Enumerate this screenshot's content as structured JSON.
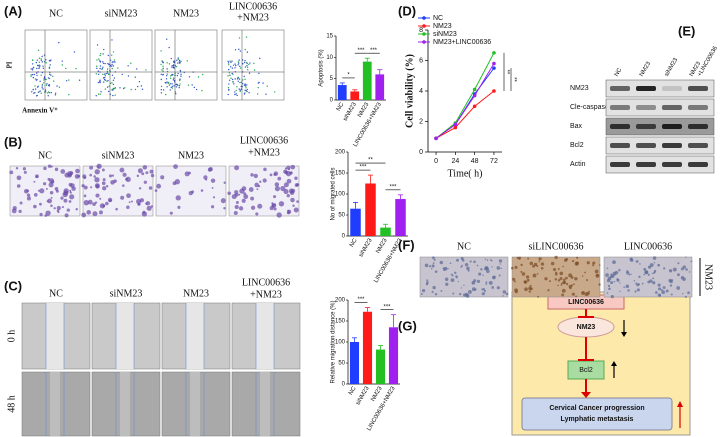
{
  "panels": {
    "a": {
      "label": "(A)",
      "groups": [
        [
          "NC"
        ],
        [
          "siNM23"
        ],
        [
          "NM23"
        ],
        [
          "LINC00636",
          "+NM23"
        ]
      ],
      "y_axis": "PI",
      "x_axis": "Annexin V⁺"
    },
    "b": {
      "label": "(B)",
      "groups": [
        [
          "NC"
        ],
        [
          "siNM23"
        ],
        [
          "NM23"
        ],
        [
          "LINC00636",
          "+NM23"
        ]
      ]
    },
    "c": {
      "label": "(C)",
      "groups": [
        [
          "NC"
        ],
        [
          "siNM23"
        ],
        [
          "NM23"
        ],
        [
          "LINC00636",
          "+NM23"
        ]
      ],
      "rows": [
        "0 h",
        "48 h"
      ]
    },
    "d": {
      "label": "(D)"
    },
    "e": {
      "label": "(E)",
      "columns": [
        [
          "NC"
        ],
        [
          "NM23"
        ],
        [
          "siNM23"
        ],
        [
          "NM23",
          "+LINC00636"
        ]
      ],
      "rows": [
        "NM23",
        "Cle-caspase 3",
        "Bax",
        "Bcl2",
        "Actin"
      ]
    },
    "f": {
      "label": "(F)",
      "columns": [
        "NC",
        "siLINC00636",
        "LINC00636"
      ],
      "row": "NM23"
    },
    "g": {
      "label": "(G)",
      "nodes": [
        [
          "LINC00636"
        ],
        [
          "NM23"
        ],
        [
          "Bcl2"
        ],
        [
          "Cervical Cancer progression",
          "Lymphatic metastasis"
        ]
      ]
    }
  },
  "chart_data": [
    {
      "type": "bar",
      "y_label": "Apoptosis (%)",
      "categories": [
        "NC",
        "siNM23",
        "NM23",
        "LINC00636+NM23"
      ],
      "values": [
        3.5,
        2,
        9,
        6
      ],
      "errors": [
        0.5,
        0.4,
        0.8,
        1.1
      ],
      "colors": [
        "#1f3cff",
        "#ff1a1a",
        "#22c022",
        "#a020f0"
      ],
      "ylim": [
        0,
        15
      ],
      "yticks": [
        0,
        5,
        10,
        15
      ],
      "annotations": [
        "*",
        "***",
        "***"
      ]
    },
    {
      "type": "bar",
      "y_label": "No of migrated cells",
      "categories": [
        "NC",
        "siNM23",
        "NM23",
        "LINC00636+NM23"
      ],
      "values": [
        65,
        125,
        20,
        88
      ],
      "errors": [
        15,
        20,
        8,
        10
      ],
      "colors": [
        "#1f3cff",
        "#ff1a1a",
        "#22c022",
        "#a020f0"
      ],
      "ylim": [
        0,
        200
      ],
      "yticks": [
        0,
        50,
        100,
        150,
        200
      ],
      "annotations": [
        "***",
        "**",
        "***"
      ]
    },
    {
      "type": "bar",
      "y_label": "Relative migration distance (%)",
      "categories": [
        "NC",
        "siNM23",
        "NM23",
        "LINC00636+NM23"
      ],
      "values": [
        100,
        172,
        82,
        135
      ],
      "errors": [
        10,
        10,
        10,
        30
      ],
      "colors": [
        "#1f3cff",
        "#ff1a1a",
        "#22c022",
        "#a020f0"
      ],
      "ylim": [
        0,
        200
      ],
      "yticks": [
        0,
        50,
        100,
        150,
        200
      ],
      "annotations": [
        "***",
        "***"
      ]
    },
    {
      "type": "line",
      "y_label": "Cell viability (%)",
      "x_label": "Time( h)",
      "x": [
        0,
        24,
        48,
        72
      ],
      "xlim": [
        -10,
        82
      ],
      "xticks": [
        0,
        24,
        48,
        72
      ],
      "ylim": [
        0,
        8
      ],
      "yticks": [
        0,
        2,
        4,
        6,
        8
      ],
      "series": [
        {
          "name": "NC",
          "color": "#1f3cff",
          "values": [
            0.9,
            1.8,
            3.8,
            5.5
          ]
        },
        {
          "name": "NM23",
          "color": "#ff1a1a",
          "values": [
            0.9,
            1.6,
            3.0,
            4.0
          ]
        },
        {
          "name": "siNM23",
          "color": "#22c022",
          "values": [
            0.9,
            1.9,
            4.1,
            6.5
          ]
        },
        {
          "name": "NM23+LINC00636",
          "color": "#a020f0",
          "values": [
            0.9,
            1.8,
            3.7,
            5.8
          ]
        }
      ],
      "annotations": [
        "**",
        "**"
      ]
    }
  ]
}
